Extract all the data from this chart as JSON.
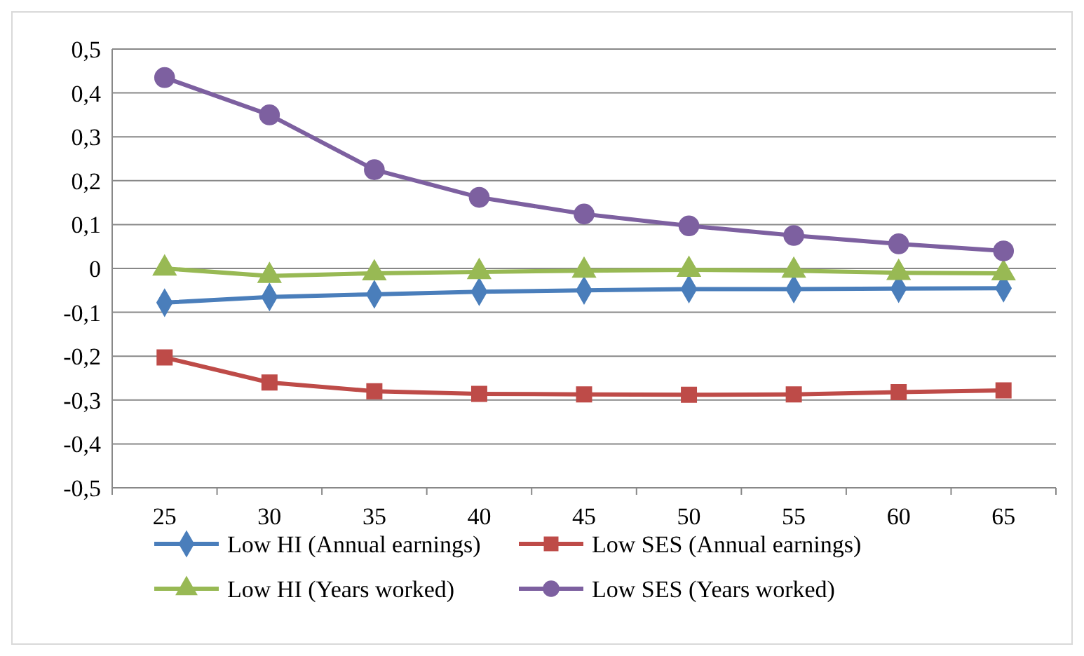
{
  "chart_data": {
    "type": "line",
    "categories": [
      "25",
      "30",
      "35",
      "40",
      "45",
      "50",
      "55",
      "60",
      "65"
    ],
    "series": [
      {
        "name": "Low HI (Annual earnings)",
        "color": "#4a7ebb",
        "marker": "diamond",
        "values": [
          -0.078,
          -0.065,
          -0.059,
          -0.053,
          -0.05,
          -0.047,
          -0.047,
          -0.046,
          -0.045
        ]
      },
      {
        "name": "Low SES (Annual earnings)",
        "color": "#be4b48",
        "marker": "square",
        "values": [
          -0.203,
          -0.26,
          -0.28,
          -0.286,
          -0.287,
          -0.288,
          -0.287,
          -0.282,
          -0.278
        ]
      },
      {
        "name": "Low HI (Years worked)",
        "color": "#98b954",
        "marker": "triangle",
        "values": [
          0,
          -0.017,
          -0.011,
          -0.008,
          -0.005,
          -0.003,
          -0.005,
          -0.01,
          -0.011
        ]
      },
      {
        "name": "Low SES (Years worked)",
        "color": "#7d60a0",
        "marker": "circle",
        "values": [
          0.435,
          0.35,
          0.225,
          0.162,
          0.124,
          0.097,
          0.075,
          0.056,
          0.04
        ]
      }
    ],
    "ylim": [
      -0.5,
      0.5
    ],
    "yticks": [
      {
        "value": -0.5,
        "label": "-0,5"
      },
      {
        "value": -0.4,
        "label": "-0,4"
      },
      {
        "value": -0.3,
        "label": "-0,3"
      },
      {
        "value": -0.2,
        "label": "-0,2"
      },
      {
        "value": -0.1,
        "label": "-0,1"
      },
      {
        "value": 0,
        "label": "0"
      },
      {
        "value": 0.1,
        "label": "0,1"
      },
      {
        "value": 0.2,
        "label": "0,2"
      },
      {
        "value": 0.3,
        "label": "0,3"
      },
      {
        "value": 0.4,
        "label": "0,4"
      },
      {
        "value": 0.5,
        "label": "0,5"
      }
    ],
    "grid": "y",
    "legend": "bottom"
  }
}
